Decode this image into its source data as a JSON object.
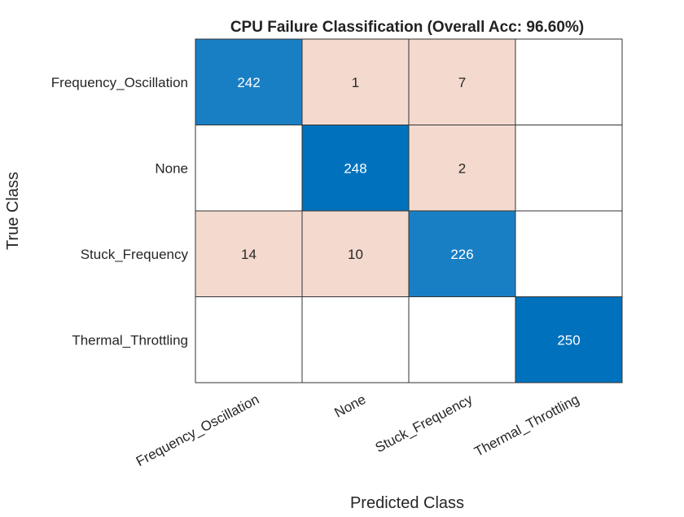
{
  "chart_data": {
    "type": "heatmap",
    "title": "CPU Failure Classification (Overall Acc: 96.60%)",
    "xlabel": "Predicted Class",
    "ylabel": "True Class",
    "categories": [
      "Frequency_Oscillation",
      "None",
      "Stuck_Frequency",
      "Thermal_Throttling"
    ],
    "matrix": [
      [
        242,
        1,
        7,
        0
      ],
      [
        0,
        248,
        2,
        0
      ],
      [
        14,
        10,
        226,
        0
      ],
      [
        0,
        0,
        0,
        250
      ]
    ],
    "grid": true,
    "colors": {
      "diagonal": "#0072BD",
      "off_diagonal": "#F3D9CE",
      "empty": "#FFFFFF",
      "grid": "#333333"
    }
  }
}
